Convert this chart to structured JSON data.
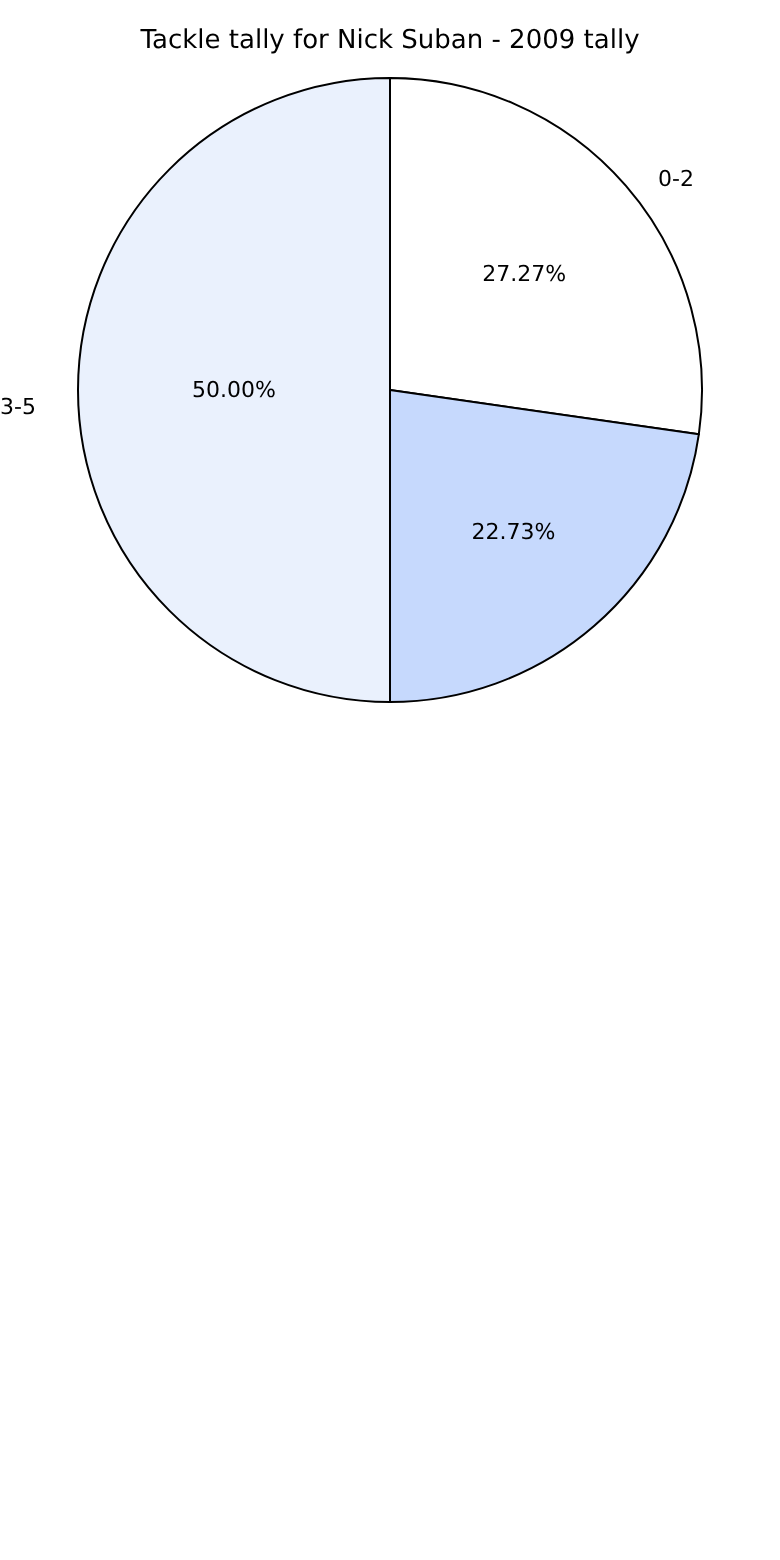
{
  "chart_data": {
    "type": "pie",
    "title": "Tackle tally for Nick Suban - 2009 tally",
    "categories": [
      "0-2",
      null,
      "3-5"
    ],
    "values": [
      27.27,
      22.73,
      50.0
    ],
    "value_labels": [
      "27.27%",
      "22.73%",
      "50.00%"
    ],
    "colors": [
      "#ffffff",
      "#c6d9fd",
      "#eaf1fd"
    ],
    "legend": false
  }
}
